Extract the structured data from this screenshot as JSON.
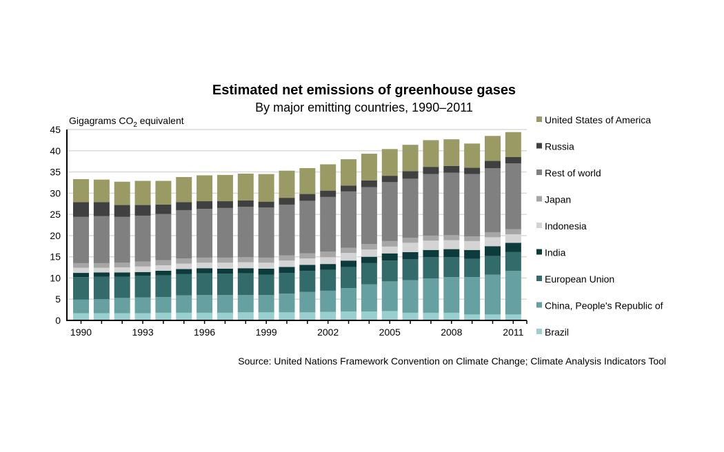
{
  "chart_data": {
    "type": "bar",
    "stacked": true,
    "title": "Estimated net emissions of greenhouse gases",
    "subtitle": "By major emitting countries, 1990–2011",
    "ylabel_main": "Gigagrams CO",
    "ylabel_sub": "2",
    "ylabel_rest": " equivalent",
    "xlabel": "",
    "ylim": [
      0,
      45
    ],
    "yticks": [
      0,
      5,
      10,
      15,
      20,
      25,
      30,
      35,
      40,
      45
    ],
    "grid": true,
    "legend_position": "right",
    "categories": [
      "1990",
      "1991",
      "1992",
      "1993",
      "1994",
      "1995",
      "1996",
      "1997",
      "1998",
      "1999",
      "2000",
      "2001",
      "2002",
      "2003",
      "2004",
      "2005",
      "2006",
      "2007",
      "2008",
      "2009",
      "2010",
      "2011"
    ],
    "xtick_labels": [
      "1990",
      "",
      "",
      "1993",
      "",
      "",
      "1996",
      "",
      "",
      "1999",
      "",
      "",
      "2002",
      "",
      "",
      "2005",
      "",
      "",
      "2008",
      "",
      "",
      "2011"
    ],
    "series": [
      {
        "name": "Brazil",
        "color": "#99cfcf",
        "values": [
          1.7,
          1.7,
          1.7,
          1.7,
          1.8,
          1.8,
          1.8,
          1.8,
          1.9,
          1.9,
          1.9,
          1.9,
          2.0,
          2.1,
          2.1,
          2.2,
          1.8,
          1.8,
          1.8,
          1.4,
          1.4,
          1.4
        ]
      },
      {
        "name": "China, People's Republic of",
        "color": "#66a0a0",
        "values": [
          3.2,
          3.3,
          3.6,
          3.7,
          3.7,
          4.1,
          4.2,
          4.2,
          4.1,
          4.1,
          4.4,
          4.8,
          5.0,
          5.5,
          6.4,
          7.0,
          7.7,
          8.1,
          8.4,
          8.8,
          9.4,
          10.3
        ]
      },
      {
        "name": "European Union",
        "color": "#336b6b",
        "values": [
          5.3,
          5.3,
          5.0,
          5.1,
          5.1,
          5.0,
          5.1,
          5.0,
          5.1,
          4.8,
          4.9,
          5.0,
          4.9,
          5.0,
          5.0,
          4.9,
          4.9,
          5.0,
          4.7,
          4.3,
          4.4,
          4.4
        ]
      },
      {
        "name": "India",
        "color": "#0d3b3b",
        "values": [
          1.0,
          1.0,
          1.0,
          0.9,
          1.1,
          1.2,
          1.2,
          1.2,
          1.2,
          1.4,
          1.4,
          1.4,
          1.4,
          1.5,
          1.5,
          1.7,
          1.7,
          1.7,
          1.9,
          2.1,
          2.3,
          2.2
        ]
      },
      {
        "name": "Indonesia",
        "color": "#d4d4d4",
        "values": [
          1.2,
          1.1,
          1.2,
          1.3,
          1.3,
          1.3,
          1.3,
          1.4,
          1.4,
          1.4,
          1.5,
          1.5,
          1.6,
          1.8,
          1.7,
          1.6,
          2.2,
          2.2,
          2.1,
          2.1,
          2.1,
          2.0
        ]
      },
      {
        "name": "Japan",
        "color": "#a6a6a6",
        "values": [
          1.1,
          1.1,
          1.1,
          1.2,
          1.2,
          1.2,
          1.2,
          1.2,
          1.2,
          1.2,
          1.2,
          1.2,
          1.3,
          1.2,
          1.3,
          1.3,
          1.2,
          1.2,
          1.2,
          1.1,
          1.2,
          1.2
        ]
      },
      {
        "name": "Rest of world",
        "color": "#808080",
        "values": [
          10.9,
          11.1,
          10.8,
          10.8,
          10.9,
          11.4,
          11.5,
          11.7,
          11.9,
          11.8,
          12.0,
          12.4,
          12.9,
          13.3,
          13.4,
          13.9,
          13.9,
          14.5,
          14.7,
          14.7,
          15.1,
          15.5
        ]
      },
      {
        "name": "Russia",
        "color": "#404040",
        "values": [
          3.5,
          3.3,
          2.8,
          2.5,
          2.2,
          1.9,
          1.8,
          1.6,
          1.5,
          1.4,
          1.6,
          1.6,
          1.5,
          1.4,
          1.6,
          1.5,
          1.8,
          1.7,
          1.6,
          1.5,
          1.7,
          1.5
        ]
      },
      {
        "name": "United States of America",
        "color": "#9a9a64",
        "values": [
          5.4,
          5.3,
          5.5,
          5.7,
          5.6,
          5.9,
          6.1,
          6.2,
          6.3,
          6.5,
          6.4,
          6.1,
          6.2,
          6.2,
          6.3,
          6.3,
          6.2,
          6.3,
          6.3,
          5.7,
          5.9,
          5.9
        ]
      }
    ],
    "legend_order": [
      "United States of America",
      "Russia",
      "Rest of world",
      "Japan",
      "Indonesia",
      "India",
      "European Union",
      "China, People's Republic of",
      "Brazil"
    ],
    "source": "Source: United Nations Framework Convention on Climate Change; Climate Analysis Indicators Tool"
  }
}
